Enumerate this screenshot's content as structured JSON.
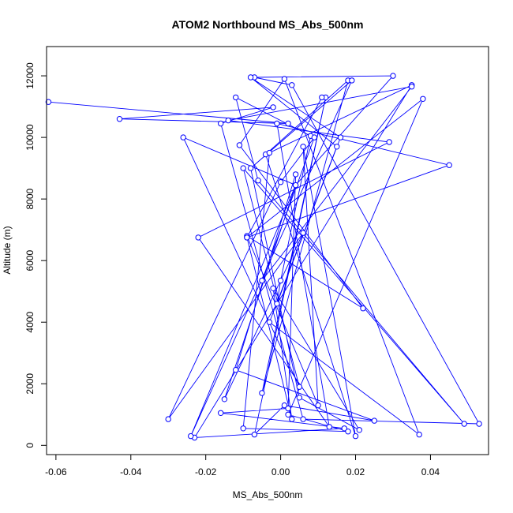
{
  "chart_data": {
    "type": "scatter",
    "title": "ATOM2 Northbound MS_Abs_500nm",
    "xlabel": "MS_Abs_500nm",
    "ylabel": "Altitude (m)",
    "xlim": [
      -0.0625,
      0.0555
    ],
    "ylim": [
      -300,
      12950
    ],
    "xticks": [
      -0.06,
      -0.04,
      -0.02,
      0.0,
      0.02,
      0.04
    ],
    "xtick_labels": [
      "-0.06",
      "-0.04",
      "-0.02",
      "0.00",
      "0.02",
      "0.04"
    ],
    "yticks": [
      0,
      2000,
      4000,
      6000,
      8000,
      10000,
      12000
    ],
    "ytick_labels": [
      "0",
      "2000",
      "4000",
      "6000",
      "8000",
      "10000",
      "12000"
    ],
    "grid": false,
    "marker": "open-circle",
    "line_connected": true,
    "color": "#0000ff",
    "series": [
      {
        "x": [
          -0.062,
          0.002,
          -0.043,
          -0.002,
          -0.016,
          0.006,
          0.053,
          0.003,
          -0.007,
          0.03,
          0.004,
          -0.026,
          0.005,
          -0.01,
          0.049,
          -0.006,
          -0.012,
          0.008,
          0.0,
          -0.001,
          0.016,
          -0.008,
          0.015,
          -0.003,
          0.037,
          0.001,
          -0.011,
          0.022,
          -0.009,
          0.01,
          0.006,
          0.02,
          -0.004,
          0.018,
          -0.005,
          0.012,
          -0.007,
          0.001,
          0.025,
          -0.012,
          0.004,
          0.002,
          -0.016,
          0.017,
          -0.023,
          0.035,
          -0.003,
          -0.01,
          0.018,
          0.002,
          0.038,
          -0.009,
          0.045,
          -0.001,
          0.013,
          -0.022,
          0.029,
          -0.014,
          0.035,
          -0.005,
          0.009,
          0.0,
          -0.03,
          0.006,
          -0.015,
          0.004,
          -0.024,
          0.019,
          -0.008,
          0.005,
          0.021,
          -0.002,
          0.003,
          -0.009,
          0.011
        ],
        "y": [
          11150,
          10450,
          10600,
          10980,
          10450,
          850,
          700,
          11700,
          11950,
          12000,
          8450,
          10000,
          1900,
          9000,
          700,
          8600,
          11300,
          10050,
          5350,
          4600,
          10000,
          11950,
          9700,
          4000,
          350,
          11900,
          9750,
          4450,
          6800,
          1300,
          9700,
          300,
          9450,
          11850,
          1700,
          11300,
          350,
          1300,
          800,
          2450,
          8800,
          1200,
          1050,
          550,
          250,
          11700,
          9500,
          550,
          450,
          1000,
          11250,
          6750,
          9100,
          10450,
          600,
          6750,
          9850,
          10550,
          11650,
          5350,
          10000,
          8550,
          850,
          6900,
          1500,
          8450,
          300,
          11850,
          9000,
          1550,
          500,
          5100,
          850,
          6750,
          11300
        ]
      }
    ]
  }
}
